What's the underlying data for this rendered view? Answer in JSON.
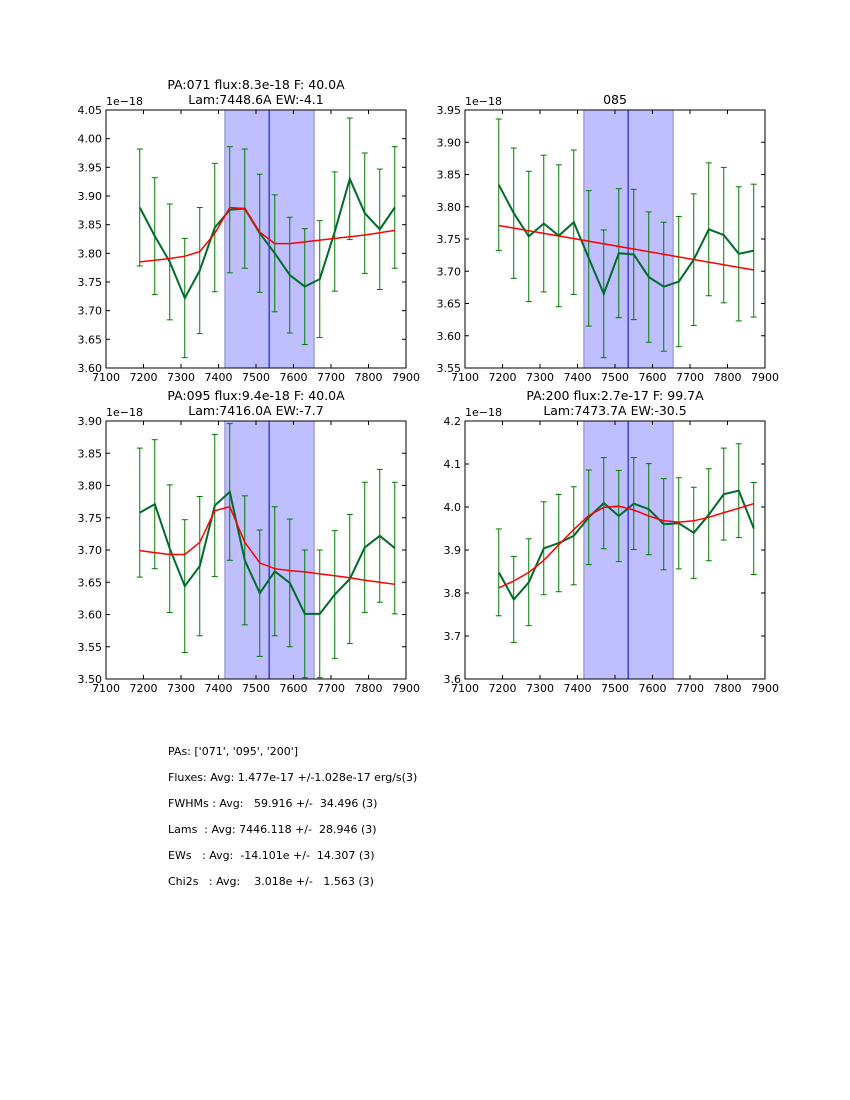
{
  "chart_data": [
    {
      "type": "line",
      "title": "PA:071 flux:8.3e-18 F: 40.0A\nLam:7448.6A EW:-4.1",
      "title_lines": [
        "PA:071 flux:8.3e-18 F: 40.0A",
        "Lam:7448.6A EW:-4.1"
      ],
      "offset_label": "1e−18",
      "xlabel": "",
      "ylabel": "",
      "xlim": [
        7100,
        7900
      ],
      "ylim": [
        3.6,
        4.05
      ],
      "xticks": [
        7100,
        7200,
        7300,
        7400,
        7500,
        7600,
        7700,
        7800,
        7900
      ],
      "xtick_labels": [
        "7100",
        "7200",
        "7300",
        "7400",
        "7500",
        "7600",
        "7700",
        "7800",
        "7900"
      ],
      "yticks": [
        3.6,
        3.65,
        3.7,
        3.75,
        3.8,
        3.85,
        3.9,
        3.95,
        4.0,
        4.05
      ],
      "ytick_labels": [
        "3.60",
        "3.65",
        "3.70",
        "3.75",
        "3.80",
        "3.85",
        "3.90",
        "3.95",
        "4.00",
        "4.05"
      ],
      "shaded_band": [
        7417,
        7655
      ],
      "center_line": 7535,
      "series": [
        {
          "name": "data",
          "color": "#006b2a",
          "x": [
            7190,
            7230,
            7270,
            7310,
            7350,
            7390,
            7430,
            7470,
            7510,
            7550,
            7590,
            7630,
            7670,
            7710,
            7750,
            7790,
            7830,
            7870
          ],
          "y": [
            3.88,
            3.83,
            3.785,
            3.722,
            3.77,
            3.845,
            3.876,
            3.878,
            3.835,
            3.8,
            3.762,
            3.742,
            3.755,
            3.838,
            3.93,
            3.87,
            3.842,
            3.88
          ],
          "yerr": [
            0.102,
            0.102,
            0.101,
            0.104,
            0.11,
            0.112,
            0.11,
            0.104,
            0.103,
            0.102,
            0.101,
            0.101,
            0.102,
            0.104,
            0.106,
            0.105,
            0.105,
            0.106
          ]
        },
        {
          "name": "fit",
          "color": "#ff0000",
          "x": [
            7190,
            7230,
            7270,
            7310,
            7350,
            7390,
            7430,
            7470,
            7510,
            7550,
            7590,
            7630,
            7670,
            7710,
            7750,
            7790,
            7830,
            7870
          ],
          "y": [
            3.785,
            3.788,
            3.791,
            3.795,
            3.803,
            3.835,
            3.88,
            3.878,
            3.837,
            3.817,
            3.817,
            3.82,
            3.823,
            3.826,
            3.829,
            3.832,
            3.836,
            3.84
          ]
        }
      ]
    },
    {
      "type": "line",
      "title": "085",
      "title_lines": [
        "085"
      ],
      "offset_label": "1e−18",
      "xlabel": "",
      "ylabel": "",
      "xlim": [
        7100,
        7900
      ],
      "ylim": [
        3.55,
        3.95
      ],
      "xticks": [
        7100,
        7200,
        7300,
        7400,
        7500,
        7600,
        7700,
        7800,
        7900
      ],
      "xtick_labels": [
        "7100",
        "7200",
        "7300",
        "7400",
        "7500",
        "7600",
        "7700",
        "7800",
        "7900"
      ],
      "yticks": [
        3.55,
        3.6,
        3.65,
        3.7,
        3.75,
        3.8,
        3.85,
        3.9,
        3.95
      ],
      "ytick_labels": [
        "3.55",
        "3.60",
        "3.65",
        "3.70",
        "3.75",
        "3.80",
        "3.85",
        "3.90",
        "3.95"
      ],
      "shaded_band": [
        7417,
        7655
      ],
      "center_line": 7535,
      "series": [
        {
          "name": "data",
          "color": "#006b2a",
          "x": [
            7190,
            7230,
            7270,
            7310,
            7350,
            7390,
            7430,
            7470,
            7510,
            7550,
            7590,
            7630,
            7670,
            7710,
            7750,
            7790,
            7830,
            7870
          ],
          "y": [
            3.834,
            3.79,
            3.754,
            3.774,
            3.755,
            3.776,
            3.72,
            3.665,
            3.728,
            3.726,
            3.691,
            3.676,
            3.684,
            3.718,
            3.765,
            3.756,
            3.727,
            3.732
          ],
          "yerr": [
            0.102,
            0.101,
            0.101,
            0.106,
            0.11,
            0.112,
            0.105,
            0.099,
            0.1,
            0.101,
            0.101,
            0.1,
            0.101,
            0.102,
            0.103,
            0.105,
            0.104,
            0.103
          ]
        },
        {
          "name": "fit",
          "color": "#ff0000",
          "x": [
            7190,
            7870
          ],
          "y": [
            3.771,
            3.702
          ]
        }
      ]
    },
    {
      "type": "line",
      "title": "PA:095 flux:9.4e-18 F: 40.0A\nLam:7416.0A EW:-7.7",
      "title_lines": [
        "PA:095 flux:9.4e-18 F: 40.0A",
        "Lam:7416.0A EW:-7.7"
      ],
      "offset_label": "1e−18",
      "xlabel": "",
      "ylabel": "",
      "xlim": [
        7100,
        7900
      ],
      "ylim": [
        3.5,
        3.9
      ],
      "xticks": [
        7100,
        7200,
        7300,
        7400,
        7500,
        7600,
        7700,
        7800,
        7900
      ],
      "xtick_labels": [
        "7100",
        "7200",
        "7300",
        "7400",
        "7500",
        "7600",
        "7700",
        "7800",
        "7900"
      ],
      "yticks": [
        3.5,
        3.55,
        3.6,
        3.65,
        3.7,
        3.75,
        3.8,
        3.85,
        3.9
      ],
      "ytick_labels": [
        "3.50",
        "3.55",
        "3.60",
        "3.65",
        "3.70",
        "3.75",
        "3.80",
        "3.85",
        "3.90"
      ],
      "shaded_band": [
        7417,
        7655
      ],
      "center_line": 7535,
      "series": [
        {
          "name": "data",
          "color": "#006b2a",
          "x": [
            7190,
            7230,
            7270,
            7310,
            7350,
            7390,
            7430,
            7470,
            7510,
            7550,
            7590,
            7630,
            7670,
            7710,
            7750,
            7790,
            7830,
            7870
          ],
          "y": [
            3.758,
            3.771,
            3.702,
            3.644,
            3.675,
            3.769,
            3.79,
            3.684,
            3.633,
            3.667,
            3.649,
            3.601,
            3.601,
            3.631,
            3.655,
            3.704,
            3.722,
            3.703
          ],
          "yerr": [
            0.1,
            0.1,
            0.099,
            0.103,
            0.108,
            0.11,
            0.106,
            0.1,
            0.098,
            0.1,
            0.099,
            0.099,
            0.099,
            0.099,
            0.1,
            0.101,
            0.103,
            0.102
          ]
        },
        {
          "name": "fit",
          "color": "#ff0000",
          "x": [
            7190,
            7230,
            7270,
            7310,
            7350,
            7390,
            7430,
            7470,
            7510,
            7550,
            7590,
            7630,
            7670,
            7710,
            7750,
            7790,
            7830,
            7870
          ],
          "y": [
            3.699,
            3.696,
            3.693,
            3.693,
            3.712,
            3.761,
            3.767,
            3.712,
            3.68,
            3.671,
            3.668,
            3.666,
            3.663,
            3.66,
            3.657,
            3.653,
            3.65,
            3.647
          ]
        }
      ]
    },
    {
      "type": "line",
      "title": "PA:200 flux:2.7e-17 F: 99.7A\nLam:7473.7A EW:-30.5",
      "title_lines": [
        "PA:200 flux:2.7e-17 F: 99.7A",
        "Lam:7473.7A EW:-30.5"
      ],
      "offset_label": "1e−18",
      "xlabel": "",
      "ylabel": "",
      "xlim": [
        7100,
        7900
      ],
      "ylim": [
        3.6,
        4.2
      ],
      "xticks": [
        7100,
        7200,
        7300,
        7400,
        7500,
        7600,
        7700,
        7800,
        7900
      ],
      "xtick_labels": [
        "7100",
        "7200",
        "7300",
        "7400",
        "7500",
        "7600",
        "7700",
        "7800",
        "7900"
      ],
      "yticks": [
        3.6,
        3.7,
        3.8,
        3.9,
        4.0,
        4.1,
        4.2
      ],
      "ytick_labels": [
        "3.6",
        "3.7",
        "3.8",
        "3.9",
        "4.0",
        "4.1",
        "4.2"
      ],
      "shaded_band": [
        7417,
        7655
      ],
      "center_line": 7535,
      "series": [
        {
          "name": "data",
          "color": "#006b2a",
          "x": [
            7190,
            7230,
            7270,
            7310,
            7350,
            7390,
            7430,
            7470,
            7510,
            7550,
            7590,
            7630,
            7670,
            7710,
            7750,
            7790,
            7830,
            7870
          ],
          "y": [
            3.848,
            3.785,
            3.825,
            3.904,
            3.916,
            3.933,
            3.976,
            4.009,
            3.979,
            4.008,
            3.995,
            3.96,
            3.962,
            3.94,
            3.982,
            4.03,
            4.038,
            3.95
          ],
          "yerr": [
            0.101,
            0.1,
            0.101,
            0.108,
            0.113,
            0.114,
            0.11,
            0.106,
            0.106,
            0.107,
            0.106,
            0.106,
            0.106,
            0.106,
            0.107,
            0.107,
            0.109,
            0.107
          ]
        },
        {
          "name": "fit",
          "color": "#ff0000",
          "x": [
            7190,
            7230,
            7270,
            7310,
            7350,
            7390,
            7430,
            7470,
            7510,
            7550,
            7590,
            7630,
            7670,
            7710,
            7750,
            7790,
            7830,
            7870
          ],
          "y": [
            3.812,
            3.828,
            3.848,
            3.876,
            3.912,
            3.948,
            3.98,
            3.999,
            4.002,
            3.993,
            3.979,
            3.968,
            3.965,
            3.968,
            3.976,
            3.987,
            3.997,
            4.008
          ]
        }
      ]
    }
  ],
  "stats": {
    "lines": [
      "PAs: ['071', '095', '200']",
      "Fluxes: Avg: 1.477e-17 +/-1.028e-17 erg/s(3)",
      "FWHMs : Avg:   59.916 +/-  34.496 (3)",
      "Lams  : Avg: 7446.118 +/-  28.946 (3)",
      "EWs   : Avg:  -14.101e +/-  14.307 (3)",
      "Chi2s   : Avg:    3.018e +/-   1.563 (3)"
    ]
  },
  "colors": {
    "data_line": "#006b2a",
    "errorbar": "#007a00",
    "fit_line": "#ff0000",
    "band_fill": "#bfbfff",
    "band_edge": "#8888bb",
    "center_line": "#0000cc"
  }
}
